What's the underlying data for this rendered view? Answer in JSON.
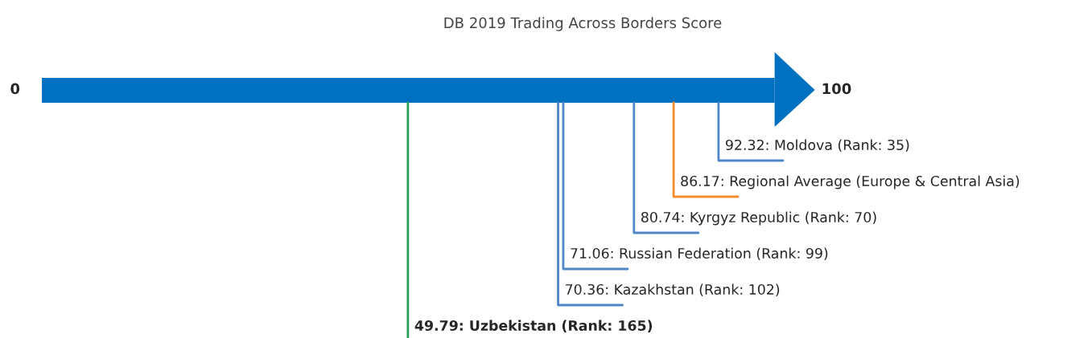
{
  "chart_data": {
    "type": "other",
    "title": "DB 2019 Trading Across Borders Score",
    "annotations": [
      "0",
      "100"
    ],
    "color": "#0070c0",
    "values": [
      92.32,
      86.17,
      80.74,
      71.06,
      70.36,
      49.79
    ],
    "colors": [
      "#4f86c6",
      "#f28e2b",
      "#4f86c6",
      "#4f86c6",
      "#4f86c6",
      "#2ca05a"
    ],
    "value_labels": [
      "92.32: Moldova (Rank: 35)",
      "86.17: Regional Average (Europe & Central Asia)",
      "80.74: Kyrgyz Republic (Rank: 70)",
      "71.06: Russian Federation (Rank: 99)",
      "70.36: Kazakhstan (Rank: 102)",
      "49.79: Uzbekistan (Rank: 165)"
    ]
  }
}
